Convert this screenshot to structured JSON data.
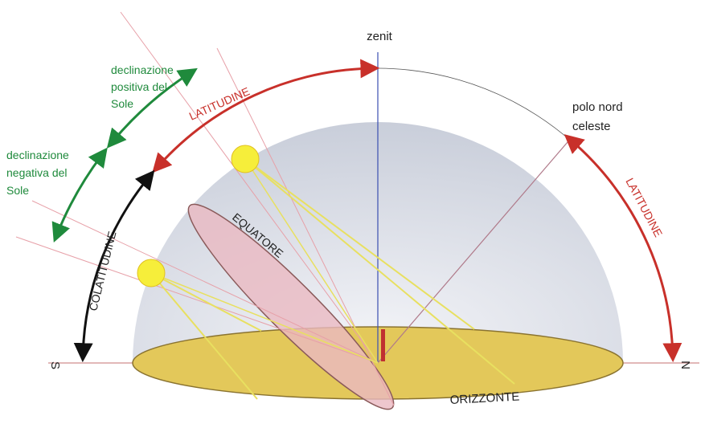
{
  "zenith": "zenit",
  "celestial_pole": [
    "polo nord",
    "celeste"
  ],
  "positive_declination": [
    "declinazione",
    "positiva del",
    "Sole"
  ],
  "negative_declination": [
    "declinazione",
    "negativa del",
    "Sole"
  ],
  "latitude_left": "LATITUDINE",
  "latitude_right": "LATITUDINE",
  "colatitude": "COLATITUDINE",
  "equator": "EQUATORE",
  "horizon": "ORIZZONTE",
  "south": "S",
  "north": "N"
}
